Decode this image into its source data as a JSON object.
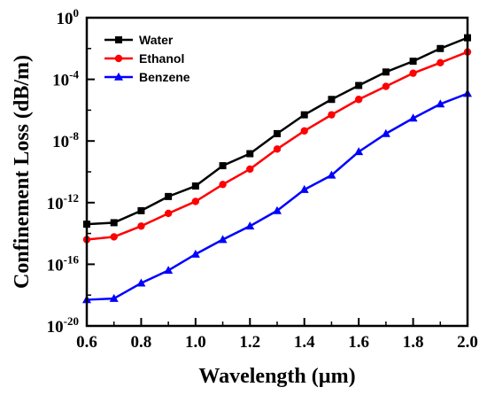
{
  "chart_data": {
    "type": "line",
    "title": "",
    "xlabel": "Wavelength (µm)",
    "ylabel": "Confinement Loss (dB/m)",
    "xlim": [
      0.6,
      2.0
    ],
    "ylim": [
      1e-20,
      1
    ],
    "y_scale": "log",
    "grid": false,
    "legend_position": "top-left",
    "x_ticks": [
      "0.6",
      "0.8",
      "1.0",
      "1.2",
      "1.4",
      "1.6",
      "1.8",
      "2.0"
    ],
    "x_tick_values": [
      0.6,
      0.8,
      1.0,
      1.2,
      1.4,
      1.6,
      1.8,
      2.0
    ],
    "y_tick_values": [
      1e-20,
      1e-16,
      1e-12,
      1e-08,
      0.0001,
      1
    ],
    "y_ticks": [
      {
        "base": "10",
        "exp": "-20"
      },
      {
        "base": "10",
        "exp": "-16"
      },
      {
        "base": "10",
        "exp": "-12"
      },
      {
        "base": "10",
        "exp": "-8"
      },
      {
        "base": "10",
        "exp": "-4"
      },
      {
        "base": "10",
        "exp": "0"
      }
    ],
    "x": [
      0.6,
      0.7,
      0.8,
      0.9,
      1.0,
      1.1,
      1.2,
      1.3,
      1.4,
      1.5,
      1.6,
      1.7,
      1.8,
      1.9,
      2.0
    ],
    "series": [
      {
        "name": "Water",
        "color": "#000000",
        "marker": "square",
        "values": [
          4e-14,
          5e-14,
          3e-13,
          2.5e-12,
          1.2e-11,
          2.5e-10,
          1.5e-09,
          3e-08,
          5e-07,
          5e-06,
          4e-05,
          0.0003,
          0.0015,
          0.01,
          0.05
        ]
      },
      {
        "name": "Ethanol",
        "color": "#ff0000",
        "marker": "circle",
        "values": [
          4e-15,
          6e-15,
          3e-14,
          2e-13,
          1.2e-12,
          1.5e-11,
          1.5e-10,
          3e-09,
          4.5e-08,
          5e-07,
          5e-06,
          3.5e-05,
          0.00025,
          0.0012,
          0.006
        ]
      },
      {
        "name": "Benzene",
        "color": "#0000ff",
        "marker": "triangle",
        "values": [
          5e-19,
          6e-19,
          6e-18,
          4e-17,
          4.5e-16,
          4e-15,
          3e-14,
          3e-13,
          7e-12,
          6e-11,
          2e-09,
          3e-08,
          3e-07,
          2.5e-06,
          1.2e-05
        ]
      }
    ]
  }
}
